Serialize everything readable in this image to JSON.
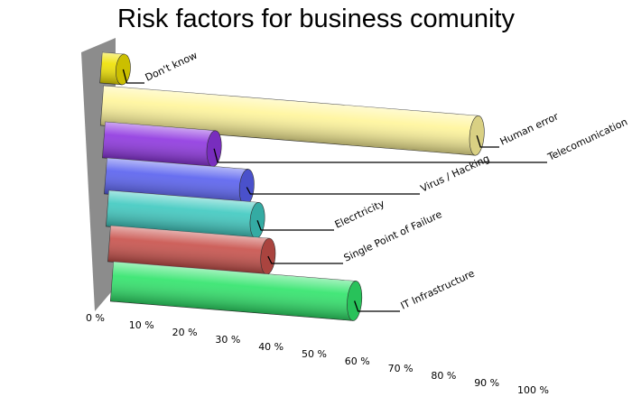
{
  "chart_data": {
    "type": "bar",
    "title": "Risk factors for business comunity",
    "categories": [
      "Don't know",
      "Human error",
      "Telecomunication",
      "Virus / Hacking",
      "Elecrtricity",
      "Single Point of Failure",
      "IT Infrastructure"
    ],
    "values": [
      5,
      85,
      25,
      32,
      34,
      36,
      55
    ],
    "colors": [
      "#efe100",
      "#fff59a",
      "#8e35e0",
      "#5860ef",
      "#3ec9c0",
      "#c8504a",
      "#2fe46a"
    ],
    "xlim": [
      0,
      100
    ],
    "xticks": [
      {
        "value": 0,
        "label": "0 %"
      },
      {
        "value": 10,
        "label": "10 %"
      },
      {
        "value": 20,
        "label": "20 %"
      },
      {
        "value": 30,
        "label": "30 %"
      },
      {
        "value": 40,
        "label": "40 %"
      },
      {
        "value": 50,
        "label": "50 %"
      },
      {
        "value": 60,
        "label": "60 %"
      },
      {
        "value": 70,
        "label": "70 %"
      },
      {
        "value": 80,
        "label": "80 %"
      },
      {
        "value": 90,
        "label": "90 %"
      },
      {
        "value": 100,
        "label": "100 %"
      }
    ]
  }
}
